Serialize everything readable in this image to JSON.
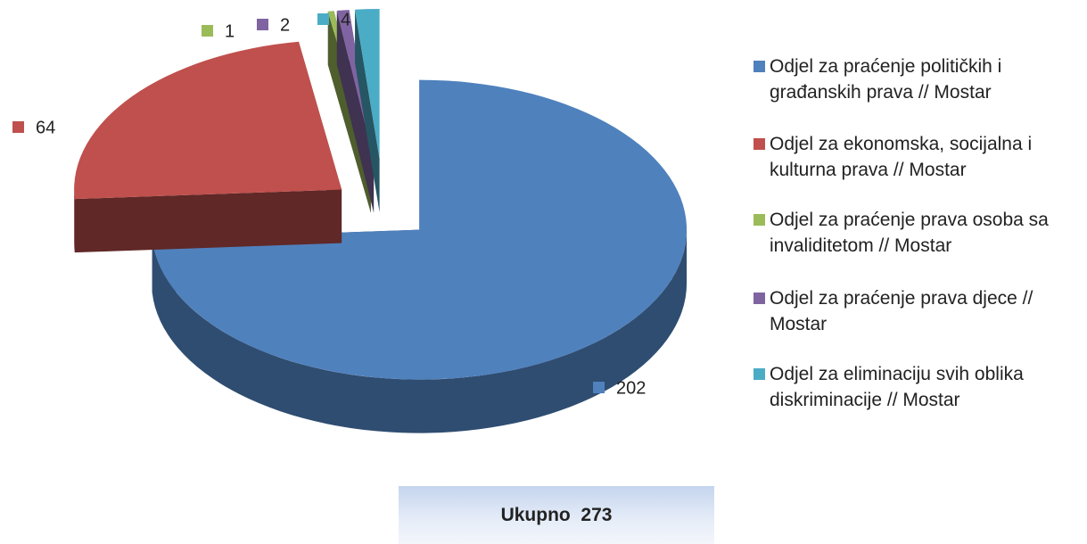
{
  "chart_data": {
    "type": "pie",
    "categories": [
      "Odjel za praćenje političkih i građanskih prava // Mostar",
      "Odjel za ekonomska, socijalna i kulturna prava // Mostar",
      "Odjel za praćenje prava osoba sa invaliditetom // Mostar",
      "Odjel za praćenje prava djece // Mostar",
      "Odjel za eliminaciju svih oblika diskriminacije // Mostar"
    ],
    "values": [
      202,
      64,
      1,
      2,
      4
    ],
    "colors": [
      "#4f81bd",
      "#c0504d",
      "#9bbb59",
      "#8064a2",
      "#4bacc6"
    ],
    "legend": "right",
    "total_label": "Ukupno  273"
  }
}
